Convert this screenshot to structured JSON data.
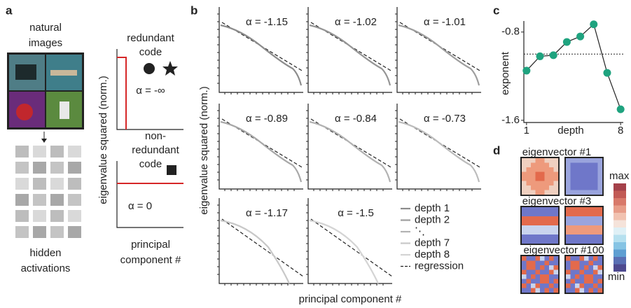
{
  "panel_a": {
    "label": "a",
    "input_title": [
      "natural",
      "images"
    ],
    "hidden_title": [
      "hidden",
      "activations"
    ],
    "ylabel": "eigenvalue squared (norm.)",
    "xlabel": [
      "principal",
      "component #"
    ],
    "redundant": {
      "title": [
        "redundant",
        "code"
      ],
      "alpha": "α = -∞"
    },
    "nonredundant": {
      "title": [
        "non-",
        "redundant",
        "code"
      ],
      "alpha": "α = 0"
    }
  },
  "panel_b": {
    "label": "b",
    "ylabel": "eigenvalue squared (norm.)",
    "xlabel": "principal component #",
    "alphas": [
      "α = -1.15",
      "α = -1.02",
      "α = -1.01",
      "α = -0.89",
      "α = -0.84",
      "α = -0.73",
      "α = -1.17",
      "α = -1.5"
    ],
    "legend": [
      "depth 1",
      "depth 2",
      "⋱",
      "depth 7",
      "depth 8",
      "regression"
    ]
  },
  "chart_data": {
    "type": "line",
    "panel_label": "c",
    "ylabel": "exponent",
    "xlabel": "depth",
    "x": [
      1,
      2,
      3,
      4,
      5,
      6,
      7,
      8
    ],
    "values": [
      -1.15,
      -1.02,
      -1.01,
      -0.89,
      -0.84,
      -0.73,
      -1.17,
      -1.5
    ],
    "color": "#1fa37f",
    "xlim": [
      0.8,
      8.2
    ],
    "ylim": [
      -1.62,
      -0.7
    ],
    "xticks": [
      1,
      8
    ],
    "yticks": [
      -0.8,
      -1.6
    ],
    "hline": -1.0
  },
  "panel_d": {
    "label": "d",
    "titles": [
      "eigenvector #1",
      "eigenvector #3",
      "eigenvector #100"
    ],
    "colorbar": {
      "max": "max",
      "min": "min"
    }
  }
}
